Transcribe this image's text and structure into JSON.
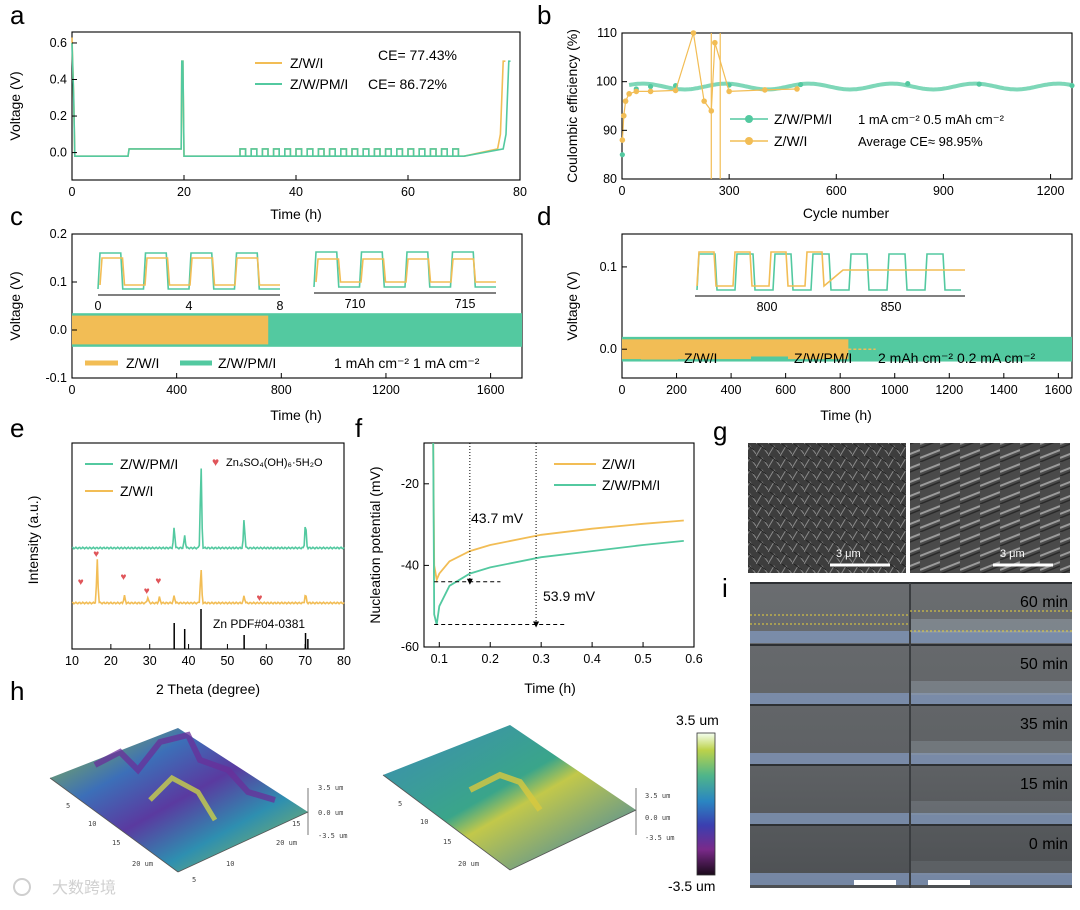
{
  "colors": {
    "zwi": "#f2bd55",
    "zwpmi": "#53c9a0",
    "sem_bg": "#3a3a3a",
    "micro_bg": "#55595c",
    "heart": "#e0555a"
  },
  "panel_letters": [
    "a",
    "b",
    "c",
    "d",
    "e",
    "f",
    "g",
    "h",
    "i"
  ],
  "watermark": "大数跨境",
  "chart_data": [
    {
      "id": "a",
      "type": "line",
      "xlabel": "Time (h)",
      "ylabel": "Voltage (V)",
      "xlim": [
        0,
        80
      ],
      "ylim": [
        -0.15,
        0.66
      ],
      "xticks": [
        "0",
        "20",
        "40",
        "60",
        "80"
      ],
      "yticks": [
        "0.0",
        "0.2",
        "0.4",
        "0.6"
      ],
      "legend": [
        {
          "name": "Z/W/I",
          "note": "CE= 77.43%"
        },
        {
          "name": "Z/W/PM/I",
          "note": "CE= 86.72%"
        }
      ],
      "series": [
        {
          "name": "Z/W/I",
          "x": [
            0,
            0.3,
            0.5,
            1,
            10,
            10.2,
            19.5,
            19.6,
            19.8,
            20,
            30,
            70,
            76,
            76.5,
            77,
            77.4
          ],
          "y": [
            0.63,
            0.3,
            -0.02,
            -0.02,
            -0.02,
            0.02,
            0.02,
            0.5,
            0.5,
            -0.02,
            -0.02,
            -0.02,
            0.02,
            0.1,
            0.5,
            0.5
          ]
        },
        {
          "name": "Z/W/PM/I",
          "x": [
            0,
            0.3,
            0.5,
            1,
            10,
            10.2,
            19.5,
            19.6,
            19.8,
            20,
            30,
            70,
            77,
            77.5,
            78,
            78.3
          ],
          "y": [
            0.6,
            0.3,
            -0.02,
            -0.02,
            -0.02,
            0.02,
            0.02,
            0.5,
            0.5,
            -0.02,
            -0.02,
            -0.02,
            0.02,
            0.1,
            0.5,
            0.5
          ]
        }
      ]
    },
    {
      "id": "b",
      "type": "scatter",
      "xlabel": "Cycle number",
      "ylabel": "Coulombic efficiency (%)",
      "xlim": [
        0,
        1260
      ],
      "ylim": [
        80,
        110
      ],
      "xticks": [
        "0",
        "300",
        "600",
        "900",
        "1200"
      ],
      "yticks": [
        "80",
        "90",
        "100",
        "110"
      ],
      "legend": [
        {
          "name": "Z/W/PM/I"
        },
        {
          "name": "Z/W/I"
        }
      ],
      "annotations": [
        "1 mA cm⁻²  0.5 mAh cm⁻²",
        "Average CE≈ 98.95%"
      ],
      "series": [
        {
          "name": "Z/W/PM/I",
          "x": [
            1,
            5,
            10,
            20,
            40,
            80,
            150,
            300,
            500,
            800,
            1000,
            1260
          ],
          "y": [
            85,
            93,
            96,
            97.5,
            98.5,
            99,
            99.2,
            99.3,
            99.4,
            99.6,
            99.5,
            99.2
          ]
        },
        {
          "name": "Z/W/I",
          "x": [
            1,
            5,
            10,
            20,
            40,
            80,
            150,
            200,
            230,
            250,
            260,
            300,
            400,
            490
          ],
          "y": [
            88,
            93,
            96,
            97.5,
            98,
            98,
            98.2,
            110,
            96,
            94,
            108,
            98,
            98.3,
            98.5
          ]
        }
      ]
    },
    {
      "id": "c",
      "type": "line",
      "xlabel": "Time (h)",
      "ylabel": "Voltage (V)",
      "xlim": [
        0,
        1720
      ],
      "ylim": [
        -0.1,
        0.2
      ],
      "xticks": [
        "0",
        "400",
        "800",
        "1200",
        "1600"
      ],
      "yticks": [
        "-0.1",
        "0.0",
        "0.1",
        "0.2"
      ],
      "legend": [
        {
          "name": "Z/W/I"
        },
        {
          "name": "Z/W/PM/I"
        }
      ],
      "annotations": [
        "1 mAh cm⁻²  1 mA cm⁻²"
      ],
      "inset_ticks_1": [
        "0",
        "4",
        "8"
      ],
      "inset_ticks_2": [
        "710",
        "715"
      ],
      "series": [
        {
          "name": "Z/W/I",
          "x": [
            0,
            750
          ],
          "band": [
            -0.03,
            0.03
          ]
        },
        {
          "name": "Z/W/PM/I",
          "x": [
            0,
            1720
          ],
          "band": [
            -0.035,
            0.035
          ]
        }
      ]
    },
    {
      "id": "d",
      "type": "line",
      "xlabel": "Time (h)",
      "ylabel": "Voltage (V)",
      "xlim": [
        0,
        1650
      ],
      "ylim": [
        -0.035,
        0.14
      ],
      "xticks": [
        "0",
        "200",
        "400",
        "600",
        "800",
        "1000",
        "1200",
        "1400",
        "1600"
      ],
      "yticks": [
        "0.0",
        "0.1"
      ],
      "legend": [
        {
          "name": "Z/W/I"
        },
        {
          "name": "Z/W/PM/I"
        }
      ],
      "annotations": [
        "2 mAh cm⁻²  0.2 mA cm⁻²"
      ],
      "inset_ticks": [
        "800",
        "850"
      ],
      "series": [
        {
          "name": "Z/W/I",
          "x": [
            0,
            830
          ],
          "band": [
            -0.012,
            0.012
          ]
        },
        {
          "name": "Z/W/PM/I",
          "x": [
            0,
            1650
          ],
          "band": [
            -0.015,
            0.015
          ]
        }
      ]
    },
    {
      "id": "e",
      "type": "line",
      "xlabel": "2 Theta (degree)",
      "ylabel": "Intensity (a.u.)",
      "xlim": [
        10,
        80
      ],
      "xticks": [
        "10",
        "20",
        "30",
        "40",
        "50",
        "60",
        "70",
        "80"
      ],
      "legend": [
        {
          "name": "Z/W/PM/I"
        },
        {
          "name": "Z/W/I"
        }
      ],
      "heart_label": "Zn₄SO₄(OH)₆·5H₂O",
      "reference_label": "Zn PDF#04-0381",
      "reference_peaks": [
        36.3,
        39.0,
        43.2,
        54.3,
        70.1,
        70.7
      ],
      "hearts_2theta": [
        12.5,
        16.5,
        23.5,
        29.5,
        32.5,
        58.5
      ],
      "series": [
        {
          "name": "Z/W/PM/I",
          "peaks": [
            [
              36.3,
              0.25
            ],
            [
              39.0,
              0.15
            ],
            [
              43.2,
              1.0
            ],
            [
              54.3,
              0.35
            ],
            [
              70.1,
              0.3
            ]
          ]
        },
        {
          "name": "Z/W/I",
          "peaks": [
            [
              16.5,
              0.9
            ],
            [
              23.5,
              0.15
            ],
            [
              29.5,
              0.12
            ],
            [
              32.5,
              0.12
            ],
            [
              36.3,
              0.15
            ],
            [
              43.2,
              0.7
            ],
            [
              54.3,
              0.15
            ],
            [
              70.1,
              0.18
            ]
          ]
        }
      ]
    },
    {
      "id": "f",
      "type": "line",
      "xlabel": "Time (h)",
      "ylabel": "Nucleation potential (mV)",
      "xlim": [
        0.07,
        0.6
      ],
      "ylim": [
        -60,
        -10
      ],
      "xticks": [
        "0.1",
        "0.2",
        "0.3",
        "0.4",
        "0.5",
        "0.6"
      ],
      "yticks": [
        "-20",
        "-40",
        "-60"
      ],
      "legend": [
        {
          "name": "Z/W/I"
        },
        {
          "name": "Z/W/PM/I"
        }
      ],
      "annotations": [
        "43.7 mV",
        "53.9 mV"
      ],
      "series": [
        {
          "name": "Z/W/I",
          "x": [
            0.088,
            0.09,
            0.095,
            0.1,
            0.12,
            0.16,
            0.2,
            0.3,
            0.4,
            0.5,
            0.58
          ],
          "y": [
            -10,
            -40,
            -43.5,
            -42,
            -39,
            -36.5,
            -35,
            -32.5,
            -31,
            -29.8,
            -29
          ]
        },
        {
          "name": "Z/W/PM/I",
          "x": [
            0.088,
            0.09,
            0.095,
            0.1,
            0.12,
            0.16,
            0.2,
            0.3,
            0.4,
            0.5,
            0.58
          ],
          "y": [
            -10,
            -52,
            -54.5,
            -50,
            -45,
            -42,
            -40.5,
            -38,
            -36.5,
            -35,
            -34
          ]
        }
      ]
    }
  ],
  "panel_g": {
    "scalebar_left": "3 μm",
    "scalebar_right": "3 μm"
  },
  "panel_h": {
    "colorbar_top": "3.5 um",
    "colorbar_bottom": "-3.5 um",
    "axis_labels": [
      "3.5 um",
      "0.0 um",
      "-3.5 um"
    ],
    "axis_ticks": [
      "5",
      "10",
      "15",
      "20 um"
    ]
  },
  "panel_i": {
    "times": [
      "60 min",
      "50 min",
      "35 min",
      "15 min",
      "0 min"
    ]
  }
}
